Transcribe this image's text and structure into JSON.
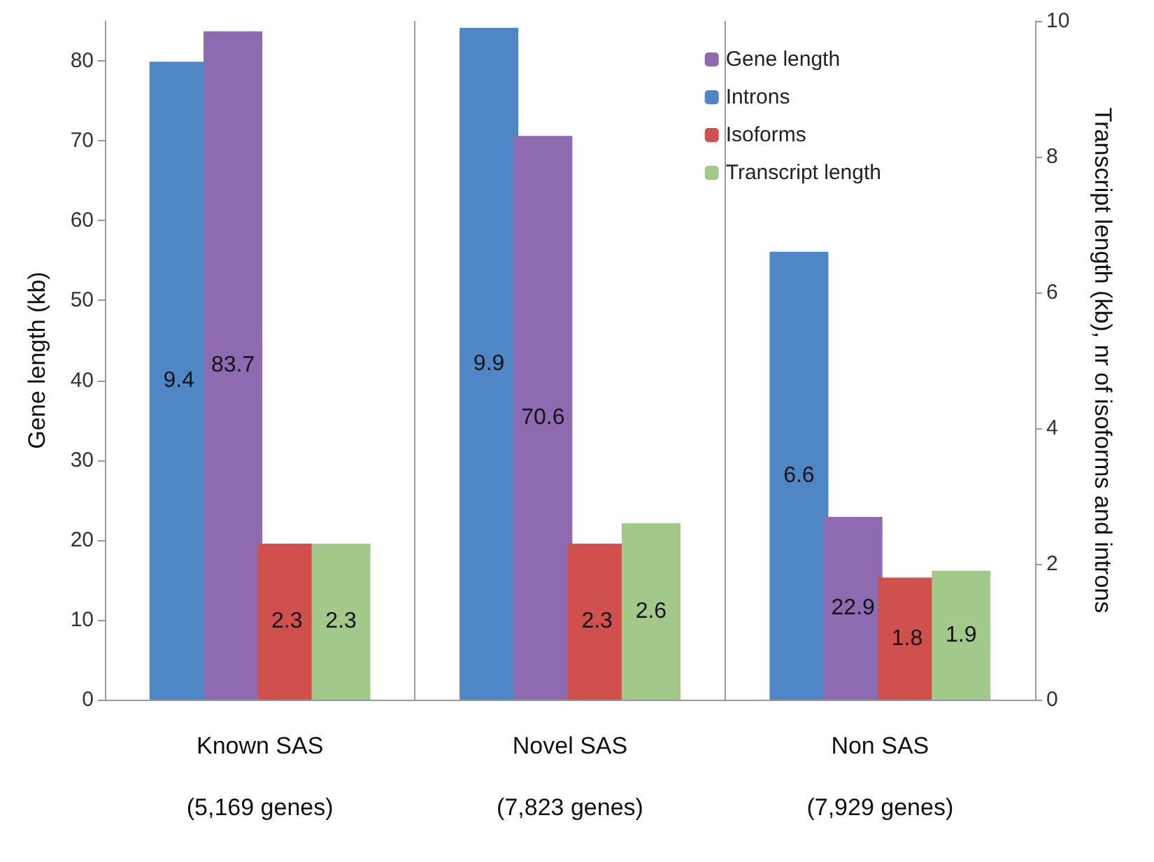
{
  "chart_data": {
    "type": "bar",
    "ylabel": "Gene length (kb)",
    "y2label": "Transcript length (kb), nr of isoforms and introns",
    "categories": [
      "Known SAS\n\n(5,169 genes)",
      "Novel SAS\n\n(7,823 genes)",
      "Non SAS\n\n(7,929 genes)"
    ],
    "series": [
      {
        "name": "Introns",
        "color": "#4f86c6",
        "axis": "y2",
        "values": [
          9.4,
          9.9,
          6.6
        ]
      },
      {
        "name": "Gene length",
        "color": "#8e6bb1",
        "values": [
          83.7,
          70.6,
          22.9
        ]
      },
      {
        "name": "Isoforms",
        "color": "#d0504d",
        "axis": "y2",
        "values": [
          2.3,
          2.3,
          1.8
        ]
      },
      {
        "name": "Transcript length",
        "color": "#a3c98a",
        "axis": "y2",
        "values": [
          2.3,
          2.6,
          1.9
        ]
      }
    ],
    "ylim": [
      0,
      85
    ],
    "yticks": [
      0,
      10,
      20,
      30,
      40,
      50,
      60,
      70,
      80
    ],
    "y2lim": [
      0,
      10
    ],
    "y2ticks": [
      0,
      2,
      4,
      6,
      8,
      10
    ],
    "data_labels": true,
    "grid": false,
    "legend": "top right"
  }
}
